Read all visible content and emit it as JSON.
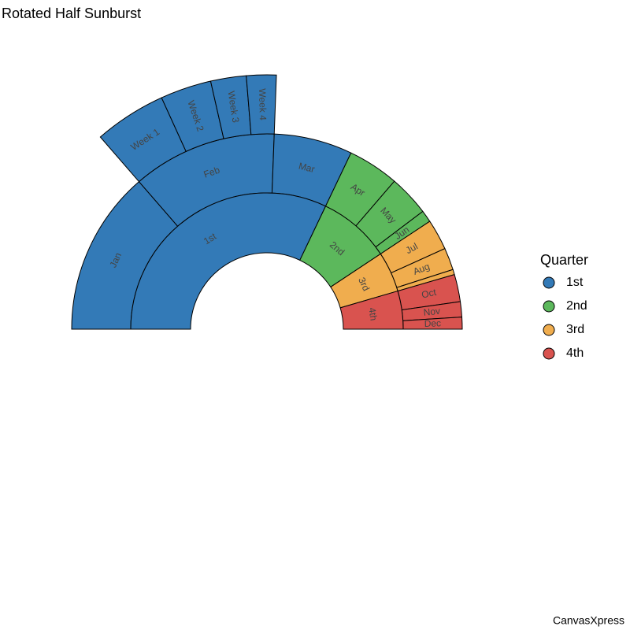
{
  "chart_data": {
    "type": "sunburst",
    "title": "Rotated Half Sunburst",
    "legend_title": "Quarter",
    "credit": "CanvasXpress",
    "quarters": [
      {
        "name": "1st",
        "color": "#337ab7",
        "children": [
          {
            "name": "Jan",
            "value": 48.3
          },
          {
            "name": "Feb",
            "value": 42.4,
            "children": [
              {
                "name": "Week 1",
                "value": 16.2
              },
              {
                "name": "Week 2",
                "value": 11.5
              },
              {
                "name": "Week 3",
                "value": 8
              },
              {
                "name": "Week 4",
                "value": 6.7
              }
            ]
          },
          {
            "name": "Mar",
            "value": 23
          }
        ]
      },
      {
        "name": "2nd",
        "color": "#5cb85c",
        "children": [
          {
            "name": "Apr",
            "value": 15
          },
          {
            "name": "May",
            "value": 12
          },
          {
            "name": "Jun",
            "value": 3.5
          }
        ]
      },
      {
        "name": "3rd",
        "color": "#f0ad4e",
        "children": [
          {
            "name": "Jul",
            "value": 9
          },
          {
            "name": "Aug",
            "value": 6.5
          },
          {
            "name": null,
            "value": 1.5
          }
        ]
      },
      {
        "name": "4th",
        "color": "#d9534f",
        "children": [
          {
            "name": "Oct",
            "value": 8
          },
          {
            "name": "Nov",
            "value": 4.5
          },
          {
            "name": "Dec",
            "value": 3.5
          }
        ]
      }
    ]
  }
}
